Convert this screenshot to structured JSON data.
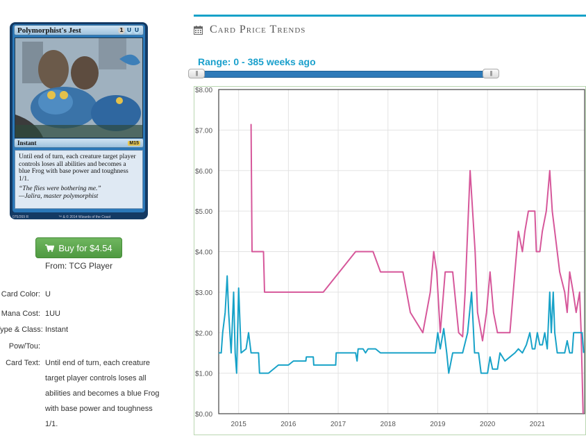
{
  "card": {
    "name": "Polymorphist's Jest",
    "mana_cost": [
      "1",
      "U",
      "U"
    ],
    "type_line": "Instant",
    "set_symbol": "M15",
    "rules_text": "Until end of turn, each creature target player controls loses all abilities and becomes a blue Frog with base power and toughness 1/1.",
    "flavor_text": "“The flies were bothering me.”",
    "flavor_attribution": "—Jalira, master polymorphist",
    "collector_info": "075/269 R",
    "copyright": "™ & © 2014 Wizards of the Coast"
  },
  "buy": {
    "label": "Buy for $4.54",
    "from": "From: TCG Player",
    "icon": "cart-icon"
  },
  "attributes": [
    {
      "label": "Card Color:",
      "value": "U"
    },
    {
      "label": "Mana Cost:",
      "value": "1UU"
    },
    {
      "label": "Type & Class:",
      "value": "Instant"
    },
    {
      "label": "Pow/Tou:",
      "value": ""
    },
    {
      "label": "Card Text:",
      "value": "Until end of turn, each creature target player controls loses all abilities and becomes a blue Frog with base power and toughness 1/1."
    }
  ],
  "price_trends": {
    "title": "Card Price Trends",
    "icon": "calendar-icon",
    "range_label": "Range: 0 - 385 weeks ago",
    "range_min": 0,
    "range_max": 385,
    "accent_color": "#17a2c8"
  },
  "chart_data": {
    "type": "line",
    "title": "",
    "xlabel": "",
    "ylabel": "",
    "xlim": [
      2014.6,
      2021.95
    ],
    "ylim": [
      0,
      8
    ],
    "x_ticks": [
      "2015",
      "2016",
      "2017",
      "2018",
      "2019",
      "2020",
      "2021"
    ],
    "y_ticks": [
      "$0.00",
      "$1.00",
      "$2.00",
      "$3.00",
      "$4.00",
      "$5.00",
      "$6.00",
      "$7.00",
      "$8.00"
    ],
    "grid": true,
    "series": [
      {
        "color": "#d6579a",
        "points": [
          [
            2015.25,
            7.15
          ],
          [
            2015.27,
            4.0
          ],
          [
            2015.5,
            4.0
          ],
          [
            2015.52,
            3.0
          ],
          [
            2016.7,
            3.0
          ],
          [
            2017.35,
            4.0
          ],
          [
            2017.7,
            4.0
          ],
          [
            2017.85,
            3.5
          ],
          [
            2018.3,
            3.5
          ],
          [
            2018.45,
            2.5
          ],
          [
            2018.7,
            2.0
          ],
          [
            2018.85,
            3.0
          ],
          [
            2018.92,
            4.0
          ],
          [
            2018.98,
            3.5
          ],
          [
            2019.05,
            2.0
          ],
          [
            2019.15,
            3.5
          ],
          [
            2019.3,
            3.5
          ],
          [
            2019.42,
            2.0
          ],
          [
            2019.5,
            1.9
          ],
          [
            2019.55,
            3.0
          ],
          [
            2019.65,
            6.0
          ],
          [
            2019.75,
            4.0
          ],
          [
            2019.8,
            2.5
          ],
          [
            2019.9,
            1.8
          ],
          [
            2019.98,
            2.5
          ],
          [
            2020.05,
            3.5
          ],
          [
            2020.12,
            2.5
          ],
          [
            2020.2,
            2.0
          ],
          [
            2020.45,
            2.0
          ],
          [
            2020.55,
            3.5
          ],
          [
            2020.62,
            4.5
          ],
          [
            2020.7,
            4.0
          ],
          [
            2020.75,
            4.5
          ],
          [
            2020.82,
            5.0
          ],
          [
            2020.95,
            5.0
          ],
          [
            2020.98,
            4.0
          ],
          [
            2021.05,
            4.0
          ],
          [
            2021.1,
            4.5
          ],
          [
            2021.18,
            5.0
          ],
          [
            2021.25,
            6.0
          ],
          [
            2021.3,
            5.0
          ],
          [
            2021.35,
            4.5
          ],
          [
            2021.45,
            3.5
          ],
          [
            2021.55,
            3.0
          ],
          [
            2021.6,
            2.5
          ],
          [
            2021.65,
            3.5
          ],
          [
            2021.72,
            3.0
          ],
          [
            2021.78,
            2.5
          ],
          [
            2021.85,
            3.0
          ],
          [
            2021.88,
            2.0
          ],
          [
            2021.92,
            0.0
          ]
        ]
      },
      {
        "color": "#17a2c8",
        "points": [
          [
            2014.6,
            1.5
          ],
          [
            2014.65,
            1.5
          ],
          [
            2014.68,
            2.0
          ],
          [
            2014.73,
            2.5
          ],
          [
            2014.77,
            3.4
          ],
          [
            2014.8,
            2.5
          ],
          [
            2014.85,
            1.5
          ],
          [
            2014.9,
            3.0
          ],
          [
            2014.93,
            1.5
          ],
          [
            2014.96,
            1.0
          ],
          [
            2015.0,
            3.1
          ],
          [
            2015.05,
            1.5
          ],
          [
            2015.15,
            1.6
          ],
          [
            2015.2,
            2.0
          ],
          [
            2015.25,
            1.5
          ],
          [
            2015.4,
            1.5
          ],
          [
            2015.42,
            1.0
          ],
          [
            2015.6,
            1.0
          ],
          [
            2015.8,
            1.2
          ],
          [
            2016.0,
            1.2
          ],
          [
            2016.1,
            1.3
          ],
          [
            2016.35,
            1.3
          ],
          [
            2016.36,
            1.4
          ],
          [
            2016.5,
            1.4
          ],
          [
            2016.51,
            1.2
          ],
          [
            2016.95,
            1.2
          ],
          [
            2016.96,
            1.5
          ],
          [
            2017.35,
            1.5
          ],
          [
            2017.38,
            1.3
          ],
          [
            2017.4,
            1.6
          ],
          [
            2017.5,
            1.6
          ],
          [
            2017.55,
            1.5
          ],
          [
            2017.6,
            1.6
          ],
          [
            2017.75,
            1.6
          ],
          [
            2017.85,
            1.5
          ],
          [
            2018.8,
            1.5
          ],
          [
            2018.95,
            1.5
          ],
          [
            2019.0,
            2.0
          ],
          [
            2019.05,
            1.6
          ],
          [
            2019.12,
            2.1
          ],
          [
            2019.18,
            1.5
          ],
          [
            2019.22,
            1.0
          ],
          [
            2019.3,
            1.5
          ],
          [
            2019.5,
            1.5
          ],
          [
            2019.6,
            2.0
          ],
          [
            2019.68,
            3.0
          ],
          [
            2019.74,
            1.5
          ],
          [
            2019.82,
            1.5
          ],
          [
            2019.87,
            1.0
          ],
          [
            2020.0,
            1.0
          ],
          [
            2020.05,
            1.4
          ],
          [
            2020.1,
            1.1
          ],
          [
            2020.2,
            1.1
          ],
          [
            2020.25,
            1.5
          ],
          [
            2020.35,
            1.3
          ],
          [
            2020.45,
            1.4
          ],
          [
            2020.55,
            1.5
          ],
          [
            2020.62,
            1.6
          ],
          [
            2020.7,
            1.5
          ],
          [
            2020.78,
            1.7
          ],
          [
            2020.85,
            2.0
          ],
          [
            2020.9,
            1.6
          ],
          [
            2020.95,
            1.6
          ],
          [
            2021.0,
            2.0
          ],
          [
            2021.05,
            1.7
          ],
          [
            2021.1,
            1.7
          ],
          [
            2021.15,
            2.0
          ],
          [
            2021.2,
            1.6
          ],
          [
            2021.25,
            3.0
          ],
          [
            2021.28,
            2.0
          ],
          [
            2021.32,
            3.0
          ],
          [
            2021.35,
            2.0
          ],
          [
            2021.4,
            1.5
          ],
          [
            2021.55,
            1.5
          ],
          [
            2021.6,
            1.8
          ],
          [
            2021.65,
            1.5
          ],
          [
            2021.7,
            1.5
          ],
          [
            2021.73,
            2.0
          ],
          [
            2021.85,
            2.0
          ],
          [
            2021.9,
            2.0
          ],
          [
            2021.93,
            1.5
          ]
        ]
      }
    ]
  }
}
